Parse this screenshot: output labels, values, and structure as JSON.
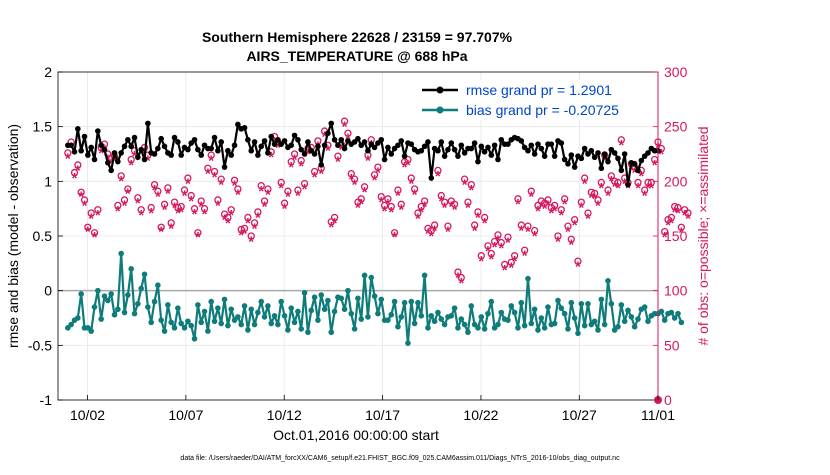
{
  "chart_data": {
    "type": "line",
    "title_line1": "Southern Hemisphere 22628 / 23159 = 97.707%",
    "title_line2": "AIRS_TEMPERATURE @ 688 hPa",
    "xlabel": "Oct.01,2016 00:00:00 start",
    "ylabel_left": "rmse and bias (model - observation)",
    "ylabel_right": "# of obs: o=possible; ×=assimilated",
    "footnote": "data file: /Users/raeder/DAI/ATM_forcXX/CAM6_setup/f.e21.FHIST_BGC.f09_025.CAM6assim.011/Diags_NTrS_2016-10/obs_diag_output.nc",
    "xlim": [
      0.5,
      31.0
    ],
    "ylim_left": [
      -1,
      2
    ],
    "ylim_right": [
      0,
      300
    ],
    "x_ticks": [
      2,
      7,
      12,
      17,
      22,
      27,
      32
    ],
    "x_tick_labels": [
      "10/02",
      "10/07",
      "10/12",
      "10/17",
      "10/22",
      "10/27",
      "11/01"
    ],
    "y_left_ticks": [
      -1,
      -0.5,
      0,
      0.5,
      1,
      1.5,
      2
    ],
    "y_left_tick_labels": [
      "-1",
      "-0.5",
      "0",
      "0.5",
      "1",
      "1.5",
      "2"
    ],
    "y_right_ticks": [
      0,
      50,
      100,
      150,
      200,
      250,
      300
    ],
    "y_right_tick_labels": [
      "0",
      "50",
      "100",
      "150",
      "200",
      "250",
      "300"
    ],
    "colors": {
      "rmse": "#000000",
      "bias": "#0e7c7b",
      "obs": "#d6175f",
      "legend_text": "#0044cc",
      "zero_line": "#aaaaaa"
    },
    "series": [
      {
        "name": "rmse grand pr = 1.2901",
        "axis": "left",
        "values": [
          1.33,
          1.33,
          1.27,
          1.48,
          1.28,
          1.41,
          1.24,
          1.31,
          1.2,
          1.46,
          1.33,
          1.29,
          1.17,
          1.1,
          1.26,
          1.18,
          1.26,
          1.32,
          1.38,
          1.32,
          1.4,
          1.22,
          1.29,
          1.2,
          1.53,
          1.26,
          1.25,
          1.3,
          1.39,
          1.32,
          1.26,
          1.24,
          1.4,
          1.36,
          1.24,
          1.31,
          1.29,
          1.35,
          1.38,
          1.29,
          1.24,
          1.33,
          1.3,
          1.3,
          1.4,
          1.28,
          1.36,
          1.13,
          1.28,
          1.24,
          1.33,
          1.52,
          1.48,
          1.49,
          1.38,
          1.28,
          1.36,
          1.24,
          1.32,
          1.37,
          1.26,
          1.41,
          1.34,
          1.38,
          1.34,
          1.37,
          1.31,
          1.33,
          1.42,
          1.38,
          1.29,
          1.25,
          1.36,
          1.28,
          1.25,
          1.32,
          1.15,
          1.33,
          1.44,
          1.53,
          1.38,
          1.33,
          1.38,
          1.3,
          1.37,
          1.34,
          1.36,
          1.39,
          1.33,
          1.36,
          1.28,
          1.34,
          1.31,
          1.35,
          1.38,
          1.2,
          1.31,
          1.25,
          1.3,
          1.33,
          1.37,
          1.23,
          1.35,
          1.34,
          1.29,
          1.27,
          1.28,
          1.32,
          1.36,
          1.03,
          1.3,
          1.28,
          1.36,
          1.23,
          1.29,
          1.35,
          1.29,
          1.23,
          1.33,
          1.26,
          1.3,
          1.3,
          1.35,
          1.18,
          1.32,
          1.27,
          1.31,
          1.24,
          1.33,
          1.2,
          1.38,
          1.34,
          1.34,
          1.38,
          1.4,
          1.39,
          1.37,
          1.31,
          1.28,
          1.33,
          1.25,
          1.34,
          1.3,
          1.23,
          1.34,
          1.34,
          1.23,
          1.37,
          1.35,
          1.2,
          1.16,
          1.24,
          1.13,
          1.23,
          1.21,
          1.3,
          1.25,
          1.28,
          1.22,
          1.26,
          1.12,
          1.25,
          1.18,
          1.29,
          1.26,
          1.21,
          1.1,
          1.25,
          0.97,
          1.17,
          1.16,
          1.1,
          1.19,
          1.23,
          1.26,
          1.3,
          1.28,
          1.28
        ]
      },
      {
        "name": "bias grand pr = -0.20725",
        "axis": "left",
        "values": [
          -0.34,
          -0.31,
          -0.27,
          -0.25,
          -0.03,
          -0.34,
          -0.34,
          -0.37,
          -0.15,
          0.0,
          -0.26,
          -0.05,
          -0.09,
          -0.03,
          -0.22,
          -0.17,
          0.34,
          -0.2,
          -0.04,
          0.2,
          -0.21,
          -0.12,
          0.02,
          0.15,
          -0.15,
          -0.29,
          -0.1,
          0.05,
          -0.27,
          -0.37,
          -0.13,
          -0.29,
          -0.34,
          -0.16,
          -0.3,
          -0.34,
          -0.28,
          -0.32,
          -0.44,
          -0.13,
          -0.29,
          -0.19,
          -0.37,
          -0.1,
          -0.28,
          -0.16,
          -0.3,
          -0.08,
          -0.32,
          -0.17,
          -0.27,
          -0.24,
          -0.31,
          -0.14,
          -0.36,
          -0.17,
          -0.31,
          -0.2,
          -0.1,
          -0.24,
          -0.14,
          -0.3,
          -0.23,
          -0.31,
          -0.1,
          -0.23,
          -0.36,
          -0.16,
          -0.29,
          -0.19,
          -0.35,
          -0.02,
          -0.38,
          -0.18,
          -0.06,
          -0.27,
          -0.04,
          -0.17,
          -0.09,
          -0.38,
          -0.19,
          -0.06,
          -0.07,
          -0.17,
          0.0,
          -0.21,
          -0.35,
          -0.07,
          -0.26,
          0.14,
          -0.24,
          0.12,
          -0.05,
          -0.21,
          -0.08,
          -0.27,
          -0.27,
          -0.22,
          -0.1,
          -0.33,
          -0.24,
          -0.11,
          -0.48,
          -0.1,
          -0.3,
          -0.11,
          -0.23,
          0.14,
          -0.34,
          -0.23,
          -0.28,
          -0.2,
          -0.26,
          -0.31,
          -0.24,
          -0.23,
          -0.16,
          -0.34,
          -0.26,
          -0.31,
          -0.38,
          -0.14,
          -0.31,
          -0.34,
          -0.24,
          -0.35,
          -0.21,
          -0.1,
          -0.34,
          -0.31,
          -0.2,
          -0.26,
          -0.27,
          -0.14,
          -0.2,
          -0.34,
          -0.11,
          -0.32,
          0.11,
          -0.3,
          -0.17,
          -0.36,
          -0.25,
          -0.34,
          -0.15,
          -0.31,
          -0.3,
          -0.09,
          -0.16,
          -0.21,
          -0.35,
          -0.11,
          -0.25,
          -0.39,
          -0.12,
          -0.32,
          -0.12,
          -0.31,
          -0.28,
          -0.36,
          -0.08,
          -0.31,
          0.09,
          -0.12,
          -0.36,
          -0.33,
          -0.13,
          -0.28,
          -0.18,
          -0.24,
          -0.33,
          -0.26,
          -0.17,
          -0.15,
          -0.28,
          -0.23,
          -0.21,
          -0.21,
          -0.19,
          -0.27,
          -0.21,
          -0.2,
          -0.25,
          -0.21,
          -0.29
        ]
      },
      {
        "name": "possible",
        "axis": "right",
        "values": [
          226,
          236,
          208,
          215,
          190,
          183,
          158,
          171,
          153,
          174,
          231,
          234,
          225,
          221,
          223,
          178,
          205,
          183,
          193,
          220,
          228,
          185,
          174,
          231,
          224,
          176,
          197,
          191,
          158,
          179,
          194,
          162,
          181,
          176,
          177,
          192,
          203,
          187,
          175,
          153,
          182,
          175,
          212,
          224,
          209,
          183,
          202,
          170,
          167,
          174,
          201,
          193,
          156,
          157,
          167,
          150,
          162,
          172,
          196,
          182,
          193,
          227,
          241,
          236,
          199,
          180,
          191,
          218,
          225,
          192,
          219,
          198,
          230,
          231,
          209,
          237,
          212,
          246,
          233,
          163,
          167,
          223,
          234,
          255,
          244,
          207,
          202,
          181,
          184,
          195,
          224,
          238,
          206,
          213,
          186,
          178,
          184,
          177,
          153,
          192,
          179,
          218,
          220,
          203,
          193,
          171,
          177,
          182,
          157,
          155,
          160,
          210,
          187,
          181,
          159,
          182,
          179,
          117,
          112,
          202,
          181,
          197,
          160,
          172,
          132,
          167,
          141,
          134,
          145,
          151,
          144,
          124,
          149,
          126,
          132,
          184,
          160,
          137,
          159,
          191,
          155,
          178,
          182,
          180,
          183,
          176,
          178,
          150,
          174,
          184,
          159,
          147,
          165,
          127,
          181,
          203,
          171,
          190,
          189,
          183,
          199,
          224,
          192,
          205,
          200,
          199,
          238,
          203,
          199,
          216,
          213,
          199,
          210,
          192,
          199,
          199,
          220,
          236,
          230,
          154,
          165,
          167,
          177,
          176,
          158,
          174,
          171
        ]
      },
      {
        "name": "assimilated",
        "axis": "right",
        "values": [
          222,
          232,
          204,
          211,
          187,
          179,
          155,
          167,
          150,
          170,
          227,
          230,
          221,
          217,
          219,
          174,
          201,
          179,
          190,
          216,
          224,
          181,
          170,
          227,
          220,
          172,
          193,
          187,
          155,
          175,
          190,
          158,
          177,
          172,
          173,
          188,
          199,
          183,
          171,
          150,
          178,
          171,
          208,
          220,
          205,
          179,
          198,
          166,
          163,
          170,
          197,
          189,
          152,
          153,
          163,
          146,
          158,
          168,
          192,
          178,
          189,
          223,
          237,
          232,
          195,
          176,
          187,
          214,
          221,
          188,
          215,
          194,
          226,
          227,
          205,
          233,
          208,
          242,
          229,
          159,
          163,
          219,
          230,
          251,
          240,
          203,
          198,
          177,
          180,
          191,
          220,
          234,
          202,
          209,
          182,
          174,
          180,
          173,
          150,
          188,
          175,
          214,
          216,
          199,
          189,
          167,
          173,
          178,
          153,
          151,
          156,
          206,
          183,
          177,
          155,
          178,
          175,
          113,
          108,
          198,
          177,
          193,
          156,
          168,
          128,
          163,
          137,
          130,
          141,
          147,
          140,
          120,
          145,
          122,
          128,
          180,
          156,
          133,
          155,
          187,
          151,
          174,
          178,
          176,
          179,
          172,
          174,
          146,
          170,
          180,
          155,
          143,
          161,
          123,
          177,
          199,
          167,
          186,
          185,
          179,
          195,
          220,
          188,
          201,
          196,
          195,
          234,
          199,
          195,
          212,
          209,
          195,
          206,
          188,
          195,
          195,
          216,
          232,
          226,
          150,
          161,
          163,
          173,
          172,
          154,
          170,
          167
        ]
      }
    ]
  }
}
